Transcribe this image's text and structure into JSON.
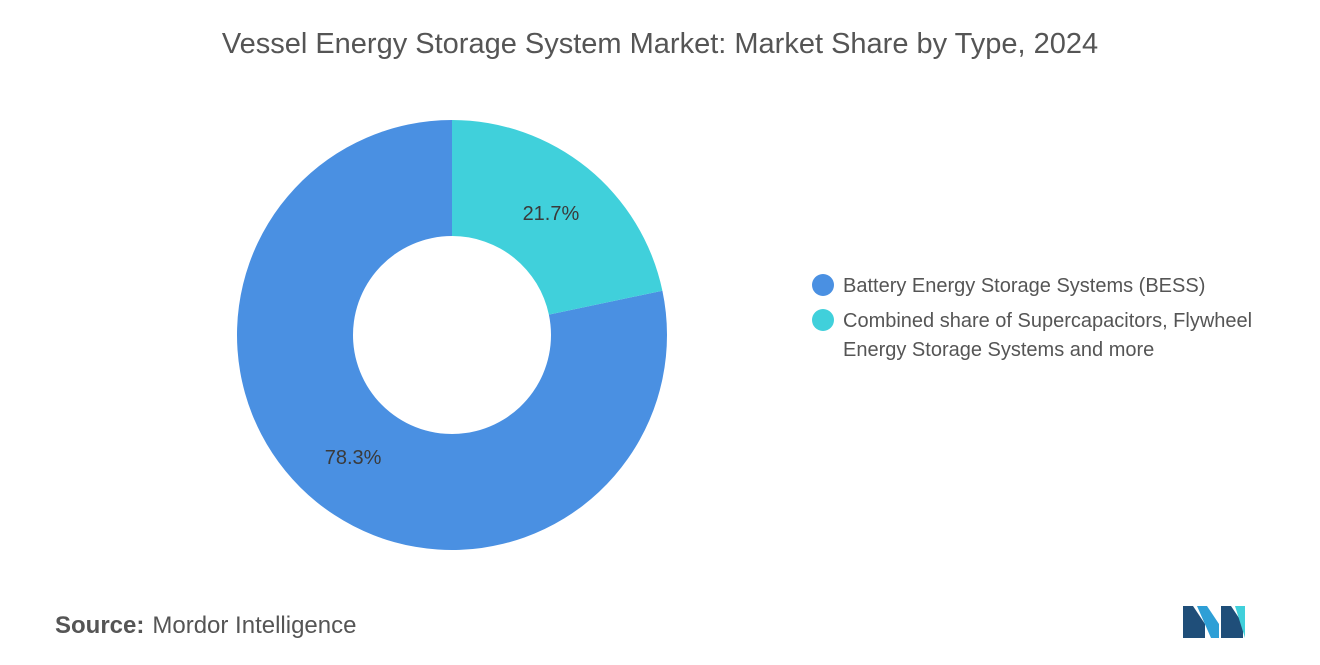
{
  "chart_data": {
    "type": "pie",
    "title": "Vessel Energy Storage System Market: Market Share by Type, 2024",
    "donut": true,
    "categories": [
      "Battery Energy Storage Systems (BESS)",
      "Combined share of Supercapacitors, Flywheel Energy Storage Systems and more"
    ],
    "values": [
      78.3,
      21.7
    ],
    "data_labels": [
      "78.3%",
      "21.7%"
    ],
    "colors": [
      "#4a90e2",
      "#40d0db"
    ],
    "legend_position": "right"
  },
  "source": {
    "label": "Source:",
    "value": "Mordor Intelligence"
  }
}
